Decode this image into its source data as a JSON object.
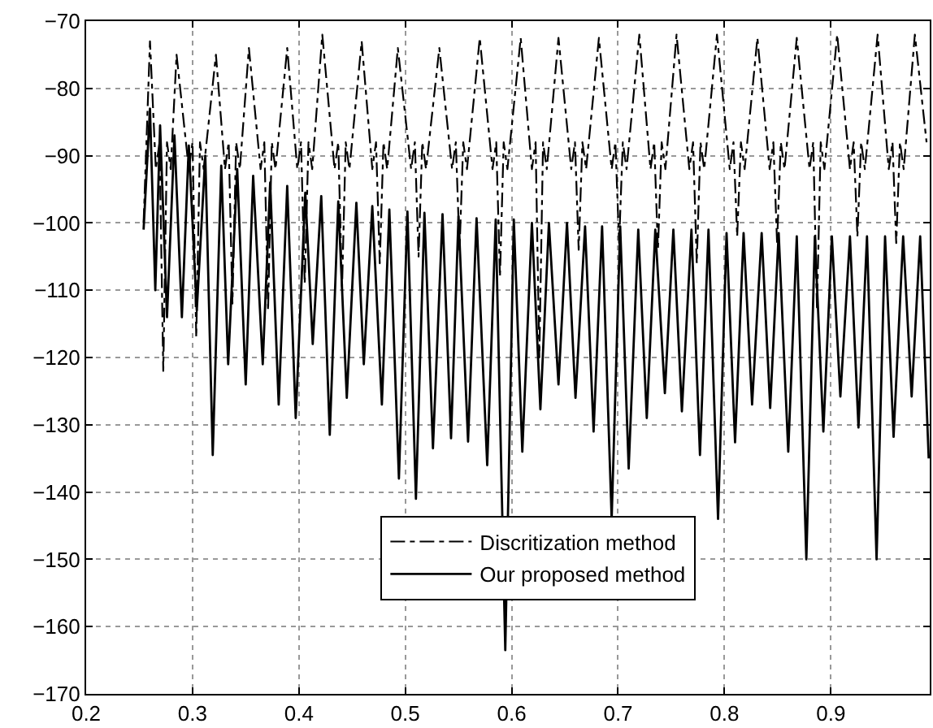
{
  "chart_data": {
    "type": "line",
    "xlim": [
      0.2,
      0.993
    ],
    "xticks": [
      0.2,
      0.3,
      0.4,
      0.5,
      0.6,
      0.7,
      0.8,
      0.9
    ],
    "ylim": [
      -170,
      -70
    ],
    "yticks": [
      -170,
      -160,
      -150,
      -140,
      -130,
      -120,
      -110,
      -100,
      -90,
      -80,
      -70
    ],
    "grid": true,
    "legend": "bottom",
    "marker": "none",
    "series": [
      {
        "name": "Discritization method",
        "color": "#000000",
        "line_style": "dashdot",
        "x": [
          0.254,
          0.26,
          0.2655,
          0.269,
          0.2725,
          0.276,
          0.2795,
          0.285,
          0.2965,
          0.3,
          0.3035,
          0.307,
          0.3105,
          0.322,
          0.3305,
          0.334,
          0.3375,
          0.341,
          0.3445,
          0.353,
          0.364,
          0.3675,
          0.371,
          0.3745,
          0.378,
          0.389,
          0.3985,
          0.402,
          0.4055,
          0.409,
          0.4125,
          0.422,
          0.4335,
          0.437,
          0.4405,
          0.444,
          0.4475,
          0.459,
          0.469,
          0.4725,
          0.476,
          0.4795,
          0.483,
          0.493,
          0.5055,
          0.509,
          0.5125,
          0.516,
          0.5195,
          0.532,
          0.544,
          0.5475,
          0.551,
          0.5545,
          0.558,
          0.57,
          0.582,
          0.5855,
          0.589,
          0.5925,
          0.596,
          0.6085,
          0.619,
          0.6225,
          0.626,
          0.6295,
          0.633,
          0.644,
          0.656,
          0.6595,
          0.663,
          0.6665,
          0.67,
          0.682,
          0.694,
          0.6975,
          0.701,
          0.7045,
          0.708,
          0.72,
          0.7305,
          0.734,
          0.7375,
          0.741,
          0.7445,
          0.755,
          0.767,
          0.7705,
          0.774,
          0.7775,
          0.781,
          0.793,
          0.805,
          0.8085,
          0.812,
          0.8155,
          0.819,
          0.831,
          0.8425,
          0.846,
          0.8495,
          0.853,
          0.8565,
          0.868,
          0.88,
          0.8835,
          0.887,
          0.8905,
          0.894,
          0.906,
          0.918,
          0.9215,
          0.925,
          0.9285,
          0.932,
          0.944,
          0.9545,
          0.958,
          0.9615,
          0.965,
          0.9685,
          0.979,
          0.99
        ],
        "values": [
          -100,
          -73,
          -92,
          -88,
          -122,
          -88,
          -92,
          -75,
          -92,
          -88,
          -117,
          -88,
          -92,
          -75,
          -92,
          -88,
          -112,
          -88,
          -92,
          -74,
          -92,
          -88,
          -113,
          -88,
          -92,
          -74,
          -92,
          -88,
          -109,
          -88,
          -92,
          -72,
          -92,
          -88,
          -110,
          -88,
          -92,
          -73,
          -92,
          -88,
          -106,
          -88,
          -92,
          -74,
          -92,
          -88,
          -105,
          -88,
          -92,
          -74,
          -92,
          -88,
          -104,
          -88,
          -92,
          -72.5,
          -92,
          -88,
          -108,
          -88,
          -92,
          -72.5,
          -92,
          -88,
          -120,
          -88,
          -92,
          -72.5,
          -92,
          -88,
          -104,
          -88,
          -92,
          -72.5,
          -92,
          -88,
          -103,
          -88,
          -92,
          -72,
          -92,
          -88,
          -104,
          -88,
          -92,
          -72,
          -92,
          -88,
          -106,
          -88,
          -92,
          -72,
          -92,
          -88,
          -102,
          -88,
          -92,
          -72.5,
          -92,
          -88,
          -103,
          -88,
          -92,
          -72.5,
          -92,
          -88,
          -113,
          -88,
          -92,
          -72,
          -92,
          -88,
          -102,
          -88,
          -92,
          -72,
          -92,
          -88,
          -103,
          -88,
          -92,
          -72,
          -88
        ]
      },
      {
        "name": "Our proposed method",
        "color": "#000000",
        "line_style": "solid",
        "x": [
          0.254,
          0.26,
          0.265,
          0.2695,
          0.276,
          0.283,
          0.29,
          0.2965,
          0.304,
          0.312,
          0.319,
          0.327,
          0.3335,
          0.342,
          0.35,
          0.357,
          0.366,
          0.373,
          0.381,
          0.389,
          0.397,
          0.406,
          0.413,
          0.421,
          0.429,
          0.437,
          0.445,
          0.454,
          0.461,
          0.469,
          0.478,
          0.485,
          0.494,
          0.502,
          0.51,
          0.518,
          0.526,
          0.535,
          0.543,
          0.55,
          0.559,
          0.567,
          0.577,
          0.585,
          0.594,
          0.602,
          0.61,
          0.619,
          0.627,
          0.635,
          0.644,
          0.652,
          0.66,
          0.669,
          0.677,
          0.685,
          0.694,
          0.702,
          0.71,
          0.719,
          0.727,
          0.735,
          0.744,
          0.752,
          0.76,
          0.769,
          0.777,
          0.785,
          0.794,
          0.802,
          0.81,
          0.818,
          0.826,
          0.835,
          0.843,
          0.851,
          0.86,
          0.868,
          0.877,
          0.885,
          0.893,
          0.901,
          0.909,
          0.918,
          0.926,
          0.934,
          0.943,
          0.951,
          0.959,
          0.968,
          0.976,
          0.984,
          0.992
        ],
        "values": [
          -101,
          -83,
          -110,
          -85.5,
          -114,
          -87,
          -114,
          -88.5,
          -113,
          -90,
          -134.5,
          -91.5,
          -121,
          -92,
          -124,
          -93,
          -121,
          -94,
          -127,
          -94.5,
          -129,
          -95.5,
          -118,
          -96,
          -131.5,
          -96.8,
          -126,
          -97,
          -121,
          -97.5,
          -127,
          -98,
          -138,
          -98.3,
          -141,
          -98.5,
          -133.5,
          -98.7,
          -132,
          -99,
          -132.5,
          -99.3,
          -136,
          -99.5,
          -163.5,
          -99.5,
          -134,
          -100,
          -127.7,
          -100,
          -124,
          -100,
          -126,
          -100.5,
          -131,
          -100.5,
          -144,
          -100.5,
          -136.5,
          -101,
          -129,
          -101,
          -125.3,
          -101,
          -128,
          -101,
          -134.5,
          -101,
          -144,
          -101.5,
          -132.6,
          -101.5,
          -127,
          -101.5,
          -127.5,
          -101.5,
          -134,
          -102,
          -150,
          -102,
          -131,
          -102,
          -125.8,
          -102,
          -130.4,
          -102,
          -150,
          -102,
          -131.8,
          -102,
          -125.8,
          -102,
          -135
        ]
      }
    ]
  }
}
